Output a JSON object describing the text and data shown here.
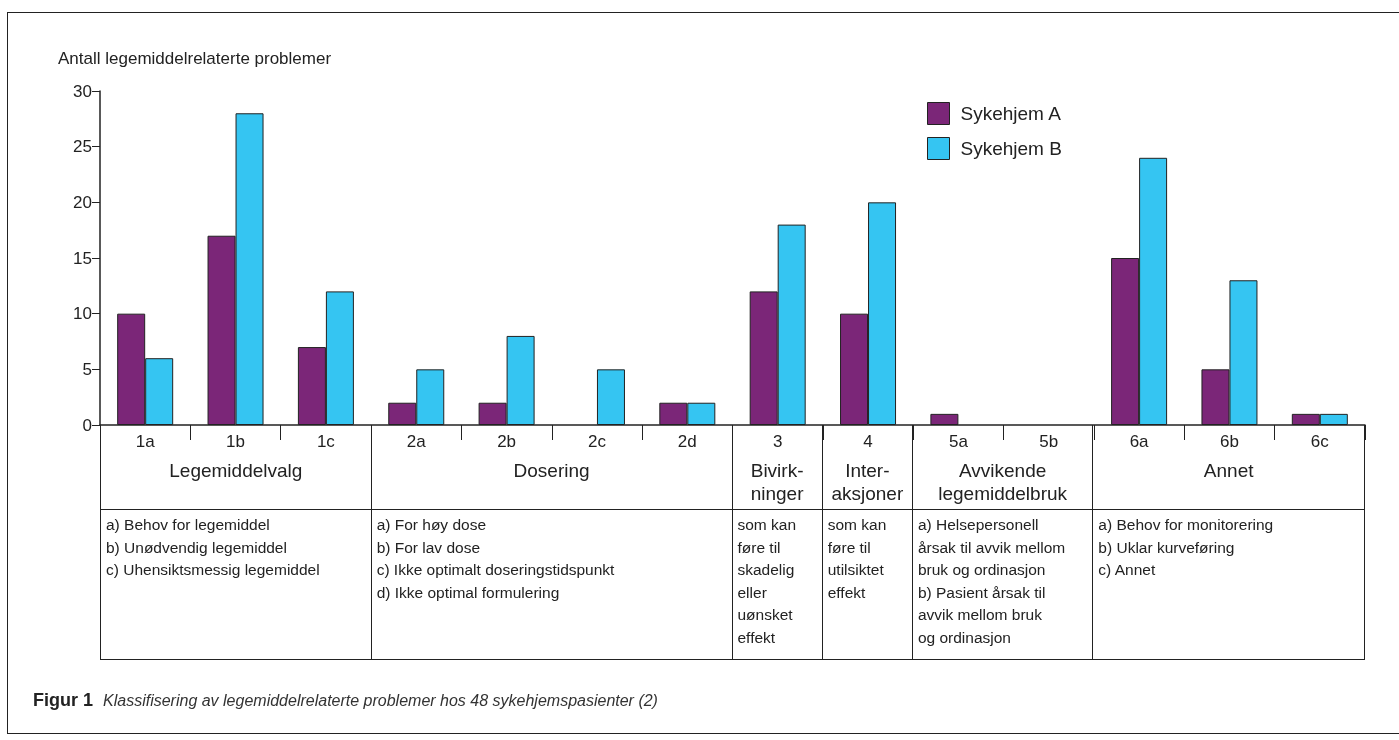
{
  "chart_data": {
    "type": "bar",
    "ylabel": "Antall legemiddelrelaterte problemer",
    "categories": [
      "1a",
      "1b",
      "1c",
      "2a",
      "2b",
      "2c",
      "2d",
      "3",
      "4",
      "5a",
      "5b",
      "6a",
      "6b",
      "6c"
    ],
    "series": [
      {
        "name": "Sykehjem A",
        "color": "#7b2678",
        "values": [
          10,
          17,
          7,
          2,
          2,
          0,
          2,
          12,
          10,
          1,
          0,
          15,
          5,
          1
        ]
      },
      {
        "name": "Sykehjem B",
        "color": "#35c5f2",
        "values": [
          6,
          28,
          12,
          5,
          8,
          5,
          2,
          18,
          20,
          0,
          0,
          24,
          13,
          1
        ]
      }
    ],
    "ylim": [
      0,
      30
    ],
    "yticks": [
      0,
      5,
      10,
      15,
      20,
      25,
      30
    ],
    "legend": "top right",
    "annotations": [
      "Legemiddelvalg",
      "Dosering",
      "Bivirk-\nninger",
      "Inter-\naksjoner",
      "Avvikende\nlegemiddelbruk",
      "Annet",
      "a) Behov for legemiddel\nb) Unødvendig legemiddel\nc) Uhensiktsmessig legemiddel",
      "a) For høy dose\nb) For lav dose\nc) Ikke optimalt doseringstidspunkt\nd) Ikke optimal formulering",
      "som kan\nføre til\nskadelig\neller\nuønsket\neffekt",
      "som kan\nføre til\nutilsiktet\neffekt",
      "a) Helsepersonell\nårsak til avvik mellom\nbruk og ordinasjon\nb) Pasient årsak til\navvik mellom bruk\nog ordinasjon",
      "a) Behov for monitorering\nb) Uklar kurveføring\nc) Annet",
      "Figur 1",
      "Klassifisering av legemiddelrelaterte problemer hos 48 sykehjemspasienter (2)"
    ]
  }
}
